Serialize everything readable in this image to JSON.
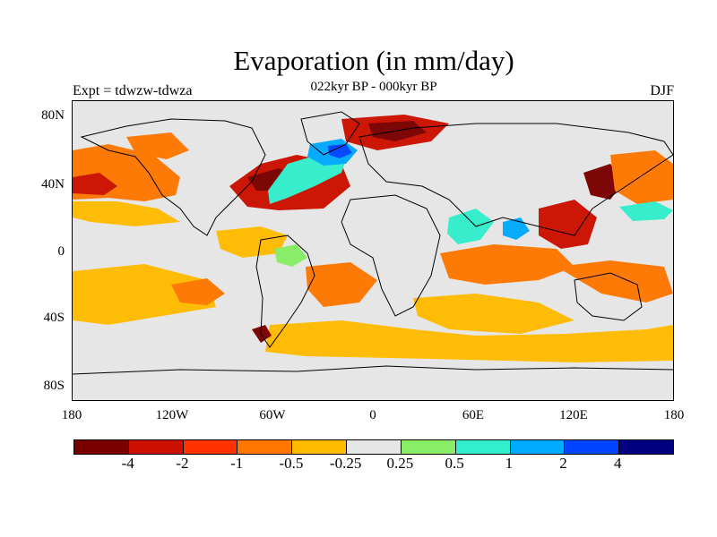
{
  "title": "Evaporation (in mm/day)",
  "subtitle": "022kyr BP - 000kyr BP",
  "left_label": "Expt = tdwzw-tdwza",
  "right_label": "DJF",
  "map": {
    "y_ticks": [
      "80N",
      "40N",
      "0",
      "40S",
      "80S"
    ],
    "x_ticks": [
      "180",
      "120W",
      "60W",
      "0",
      "60E",
      "120E",
      "180"
    ]
  },
  "colorbar": {
    "colors": [
      "#7a0000",
      "#cc1100",
      "#ff3300",
      "#ff7700",
      "#ffbb00",
      "#e6e6e6",
      "#88ee66",
      "#33eecc",
      "#00aaff",
      "#0044ff",
      "#000080"
    ],
    "labels": [
      "-4",
      "-2",
      "-1",
      "-0.5",
      "-0.25",
      "0.25",
      "0.5",
      "1",
      "2",
      "4"
    ]
  }
}
